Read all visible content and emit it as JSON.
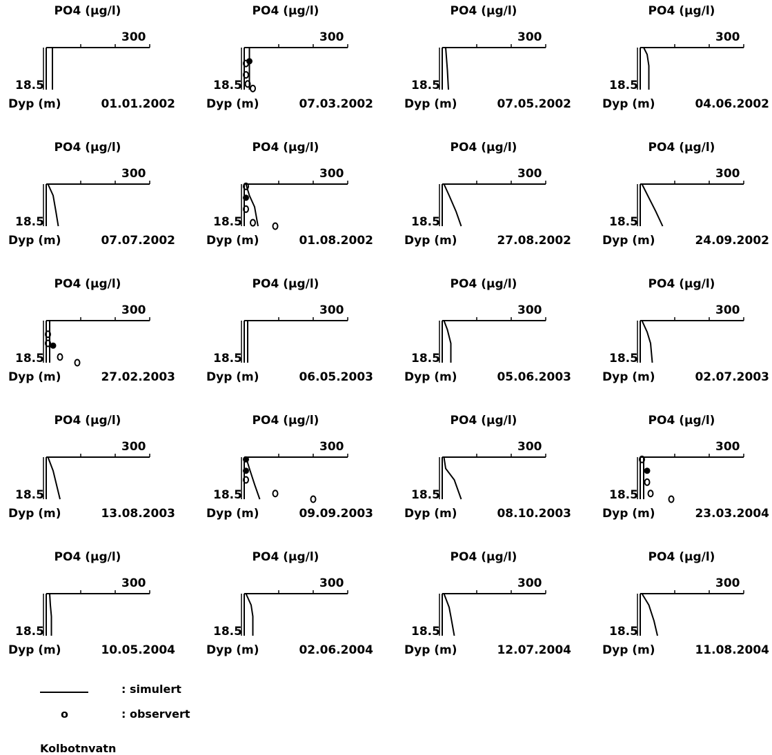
{
  "chart_data": {
    "type": "line",
    "panel_title": "PO4 (µg/l)",
    "ylabel": "Dyp (m)",
    "x_max_label": "300",
    "depth_label": "18.5",
    "xlim": [
      0,
      300
    ],
    "ylim": [
      0,
      18.5
    ],
    "panels": [
      {
        "date": "01.01.2002",
        "sim": [
          [
            18,
            0
          ],
          [
            18,
            18.5
          ]
        ],
        "obs": [],
        "obs_filled": []
      },
      {
        "date": "07.03.2002",
        "sim": [
          [
            15,
            0
          ],
          [
            15,
            18.5
          ]
        ],
        "obs": [
          [
            5,
            7
          ],
          [
            5,
            12
          ],
          [
            10,
            16
          ],
          [
            25,
            18
          ]
        ],
        "obs_filled": [
          [
            15,
            6
          ]
        ]
      },
      {
        "date": "07.05.2002",
        "sim": [
          [
            10,
            0
          ],
          [
            12,
            4
          ],
          [
            15,
            10
          ],
          [
            18,
            18.5
          ]
        ],
        "obs": [],
        "obs_filled": []
      },
      {
        "date": "04.06.2002",
        "sim": [
          [
            10,
            0
          ],
          [
            20,
            3
          ],
          [
            25,
            8
          ],
          [
            25,
            18.5
          ]
        ],
        "obs": [],
        "obs_filled": []
      },
      {
        "date": "07.07.2002",
        "sim": [
          [
            5,
            0
          ],
          [
            20,
            5
          ],
          [
            28,
            12
          ],
          [
            35,
            18.5
          ]
        ],
        "obs": [],
        "obs_filled": []
      },
      {
        "date": "01.08.2002",
        "sim": [
          [
            5,
            0
          ],
          [
            15,
            5
          ],
          [
            30,
            10
          ],
          [
            40,
            18.5
          ]
        ],
        "obs": [
          [
            5,
            1
          ],
          [
            5,
            11
          ],
          [
            25,
            17
          ],
          [
            90,
            18.5
          ]
        ],
        "obs_filled": [
          [
            5,
            6
          ]
        ]
      },
      {
        "date": "27.08.2002",
        "sim": [
          [
            5,
            0
          ],
          [
            20,
            5
          ],
          [
            40,
            12
          ],
          [
            55,
            18.5
          ]
        ],
        "obs": [],
        "obs_filled": []
      },
      {
        "date": "24.09.2002",
        "sim": [
          [
            5,
            0
          ],
          [
            25,
            6
          ],
          [
            45,
            12
          ],
          [
            65,
            18.5
          ]
        ],
        "obs": [],
        "obs_filled": []
      },
      {
        "date": "27.02.2003",
        "sim": [
          [
            10,
            0
          ],
          [
            10,
            18.5
          ]
        ],
        "obs": [
          [
            5,
            6
          ],
          [
            5,
            10
          ],
          [
            40,
            16
          ],
          [
            90,
            18.5
          ]
        ],
        "obs_filled": [
          [
            20,
            11
          ]
        ]
      },
      {
        "date": "06.05.2003",
        "sim": [
          [
            10,
            0
          ],
          [
            10,
            18.5
          ]
        ],
        "obs": [],
        "obs_filled": []
      },
      {
        "date": "05.06.2003",
        "sim": [
          [
            5,
            0
          ],
          [
            15,
            4
          ],
          [
            25,
            10
          ],
          [
            25,
            18.5
          ]
        ],
        "obs": [],
        "obs_filled": []
      },
      {
        "date": "02.07.2003",
        "sim": [
          [
            5,
            0
          ],
          [
            20,
            5
          ],
          [
            30,
            10
          ],
          [
            35,
            18.5
          ]
        ],
        "obs": [],
        "obs_filled": []
      },
      {
        "date": "13.08.2003",
        "sim": [
          [
            5,
            0
          ],
          [
            20,
            6
          ],
          [
            40,
            18.5
          ]
        ],
        "obs": [],
        "obs_filled": []
      },
      {
        "date": "09.09.2003",
        "sim": [
          [
            5,
            0
          ],
          [
            15,
            5
          ],
          [
            30,
            12
          ],
          [
            45,
            18.5
          ]
        ],
        "obs": [
          [
            5,
            10
          ],
          [
            90,
            16
          ],
          [
            200,
            18.5
          ]
        ],
        "obs_filled": [
          [
            5,
            1
          ],
          [
            5,
            6
          ]
        ]
      },
      {
        "date": "08.10.2003",
        "sim": [
          [
            5,
            0
          ],
          [
            10,
            5
          ],
          [
            35,
            10
          ],
          [
            55,
            18.5
          ]
        ],
        "obs": [],
        "obs_filled": []
      },
      {
        "date": "23.03.2004",
        "sim": [
          [
            10,
            0
          ],
          [
            10,
            18.5
          ]
        ],
        "obs": [
          [
            5,
            1
          ],
          [
            20,
            11
          ],
          [
            30,
            16
          ],
          [
            90,
            18.5
          ]
        ],
        "obs_filled": [
          [
            20,
            6
          ]
        ]
      },
      {
        "date": "10.05.2004",
        "sim": [
          [
            10,
            0
          ],
          [
            12,
            5
          ],
          [
            15,
            10
          ],
          [
            15,
            18.5
          ]
        ],
        "obs": [],
        "obs_filled": []
      },
      {
        "date": "02.06.2004",
        "sim": [
          [
            5,
            0
          ],
          [
            20,
            5
          ],
          [
            25,
            10
          ],
          [
            25,
            18.5
          ]
        ],
        "obs": [],
        "obs_filled": []
      },
      {
        "date": "12.07.2004",
        "sim": [
          [
            5,
            0
          ],
          [
            20,
            6
          ],
          [
            25,
            10
          ],
          [
            35,
            18.5
          ]
        ],
        "obs": [],
        "obs_filled": []
      },
      {
        "date": "11.08.2004",
        "sim": [
          [
            5,
            0
          ],
          [
            25,
            5
          ],
          [
            40,
            12
          ],
          [
            50,
            18.5
          ]
        ],
        "obs": [],
        "obs_filled": []
      }
    ]
  },
  "legend": {
    "sim_label": ": simulert",
    "obs_symbol": "o",
    "obs_label": ": observert"
  },
  "lake": "Kolbotnvatn"
}
